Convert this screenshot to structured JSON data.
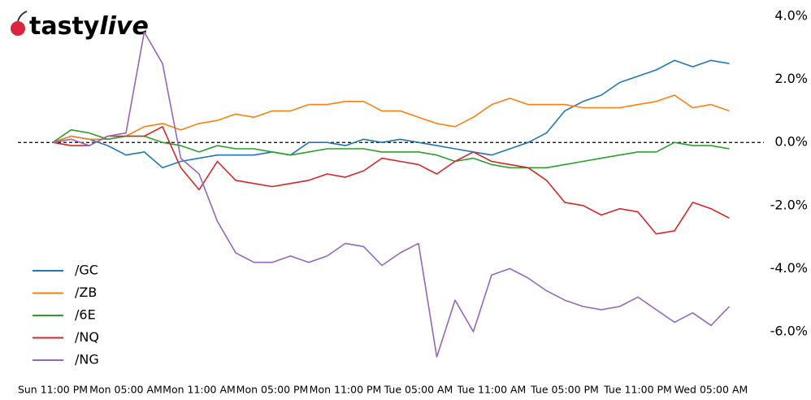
{
  "logo": {
    "bold": "tasty",
    "italic": "live"
  },
  "chart_data": {
    "type": "line",
    "x": [
      0,
      1.5,
      3,
      4.5,
      6,
      7.5,
      9,
      10.5,
      12,
      13.5,
      15,
      16.5,
      18,
      19.5,
      21,
      22.5,
      24,
      25.5,
      27,
      28.5,
      30,
      31.5,
      33,
      34.5,
      36,
      37.5,
      39,
      40.5,
      42,
      43.5,
      45,
      46.5,
      48,
      49.5,
      51,
      52.5,
      54,
      55.5
    ],
    "xlim": [
      0,
      55.5
    ],
    "xticks": [
      {
        "value": 0,
        "label": "Sun 11:00 PM"
      },
      {
        "value": 6,
        "label": "Mon 05:00 AM"
      },
      {
        "value": 12,
        "label": "Mon 11:00 AM"
      },
      {
        "value": 18,
        "label": "Mon 05:00 PM"
      },
      {
        "value": 24,
        "label": "Mon 11:00 PM"
      },
      {
        "value": 30,
        "label": "Tue 05:00 AM"
      },
      {
        "value": 36,
        "label": "Tue 11:00 AM"
      },
      {
        "value": 42,
        "label": "Tue 05:00 PM"
      },
      {
        "value": 48,
        "label": "Tue 11:00 PM"
      },
      {
        "value": 54,
        "label": "Wed 05:00 AM"
      }
    ],
    "ylim": [
      -7.2,
      4.0
    ],
    "yticks": [
      {
        "value": 4,
        "label": "4.0%"
      },
      {
        "value": 2,
        "label": "2.0%"
      },
      {
        "value": 0,
        "label": "0.0%"
      },
      {
        "value": -2,
        "label": "-2.0%"
      },
      {
        "value": -4,
        "label": "-4.0%"
      },
      {
        "value": -6,
        "label": "-6.0%"
      }
    ],
    "zero_line": true,
    "legend": "lower left",
    "series": [
      {
        "name": "/GC",
        "color": "#1f77b4",
        "values": [
          0,
          0.2,
          0.1,
          -0.1,
          -0.4,
          -0.3,
          -0.8,
          -0.6,
          -0.5,
          -0.4,
          -0.4,
          -0.4,
          -0.3,
          -0.4,
          0.0,
          0.0,
          -0.1,
          0.1,
          0.0,
          0.1,
          0.0,
          -0.1,
          -0.2,
          -0.3,
          -0.4,
          -0.2,
          0.0,
          0.3,
          1.0,
          1.3,
          1.5,
          1.9,
          2.1,
          2.3,
          2.6,
          2.4,
          2.6,
          2.5
        ]
      },
      {
        "name": "/ZB",
        "color": "#ff7f0e",
        "values": [
          0,
          0.2,
          0.1,
          0.1,
          0.2,
          0.5,
          0.6,
          0.4,
          0.6,
          0.7,
          0.9,
          0.8,
          1.0,
          1.0,
          1.2,
          1.2,
          1.3,
          1.3,
          1.0,
          1.0,
          0.8,
          0.6,
          0.5,
          0.8,
          1.2,
          1.4,
          1.2,
          1.2,
          1.2,
          1.1,
          1.1,
          1.1,
          1.2,
          1.3,
          1.5,
          1.1,
          1.2,
          1.0
        ]
      },
      {
        "name": "/6E",
        "color": "#2ca02c",
        "values": [
          0,
          0.4,
          0.3,
          0.1,
          0.2,
          0.2,
          0.0,
          -0.1,
          -0.3,
          -0.1,
          -0.2,
          -0.2,
          -0.3,
          -0.4,
          -0.3,
          -0.2,
          -0.2,
          -0.2,
          -0.3,
          -0.3,
          -0.3,
          -0.4,
          -0.6,
          -0.5,
          -0.7,
          -0.8,
          -0.8,
          -0.8,
          -0.7,
          -0.6,
          -0.5,
          -0.4,
          -0.3,
          -0.3,
          0.0,
          -0.1,
          -0.1,
          -0.2
        ]
      },
      {
        "name": "/NQ",
        "color": "#d62728",
        "values": [
          0,
          -0.1,
          -0.1,
          0.2,
          0.2,
          0.2,
          0.5,
          -0.8,
          -1.5,
          -0.6,
          -1.2,
          -1.3,
          -1.4,
          -1.3,
          -1.2,
          -1.0,
          -1.1,
          -0.9,
          -0.5,
          -0.6,
          -0.7,
          -1.0,
          -0.6,
          -0.3,
          -0.6,
          -0.7,
          -0.8,
          -1.2,
          -1.9,
          -2.0,
          -2.3,
          -2.1,
          -2.2,
          -2.9,
          -2.8,
          -1.9,
          -2.1,
          -2.4
        ]
      },
      {
        "name": "/NG",
        "color": "#9467bd",
        "values": [
          0,
          0.1,
          -0.1,
          0.2,
          0.3,
          3.5,
          2.5,
          -0.5,
          -1.0,
          -2.5,
          -3.5,
          -3.8,
          -3.8,
          -3.6,
          -3.8,
          -3.6,
          -3.2,
          -3.3,
          -3.9,
          -3.5,
          -3.2,
          -6.8,
          -5.0,
          -6.0,
          -4.2,
          -4.0,
          -4.3,
          -4.7,
          -5.0,
          -5.2,
          -5.3,
          -5.2,
          -4.9,
          -5.3,
          -5.7,
          -5.4,
          -5.8,
          -5.2
        ]
      }
    ]
  }
}
